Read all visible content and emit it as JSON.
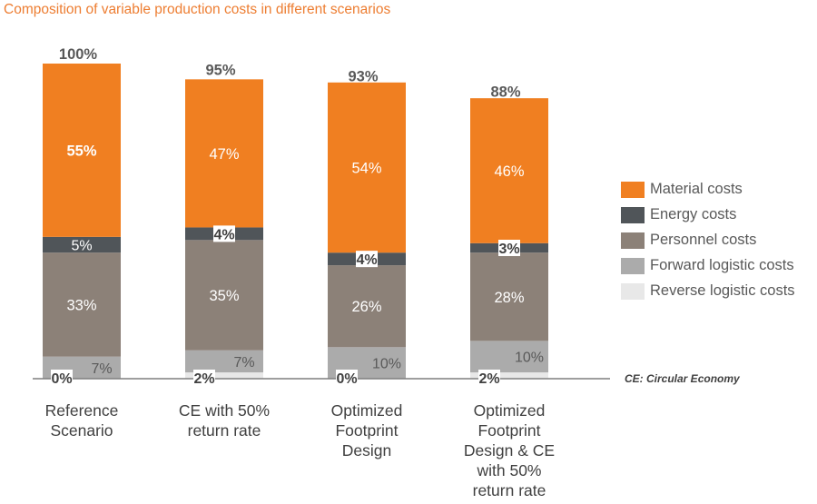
{
  "colors": {
    "title": "#ED7D31",
    "material": "#F07F21",
    "energy": "#505559",
    "personnel": "#8C8178",
    "forward": "#ABABAB",
    "reverse": "#E8E8E8",
    "axis": "#7F7F7F",
    "total_label": "#595959",
    "category_label": "#404040"
  },
  "chart_data": {
    "type": "bar",
    "stacked": true,
    "title": "Composition of variable production costs in different scenarios",
    "categories": [
      "Reference Scenario",
      "CE with 50% return rate",
      "Optimized Footprint Design",
      "Optimized Footprint Design & CE with 50% return rate"
    ],
    "category_lines": [
      [
        "Reference",
        "Scenario"
      ],
      [
        "CE with 50%",
        "return rate"
      ],
      [
        "Optimized",
        "Footprint",
        "Design"
      ],
      [
        "Optimized",
        "Footprint",
        "Design & CE",
        "with 50%",
        "return rate"
      ]
    ],
    "totals": [
      100,
      95,
      93,
      88
    ],
    "total_labels": [
      "100%",
      "95%",
      "93%",
      "88%"
    ],
    "series": [
      {
        "name": "Reverse logistic costs",
        "key": "reverse",
        "values": [
          0,
          2,
          0,
          2
        ],
        "labels": [
          "0%",
          "2%",
          "0%",
          "2%"
        ]
      },
      {
        "name": "Forward logistic costs",
        "key": "forward",
        "values": [
          7,
          7,
          10,
          10
        ],
        "labels": [
          "7%",
          "7%",
          "10%",
          "10%"
        ]
      },
      {
        "name": "Personnel costs",
        "key": "personnel",
        "values": [
          33,
          35,
          26,
          28
        ],
        "labels": [
          "33%",
          "35%",
          "26%",
          "28%"
        ]
      },
      {
        "name": "Energy costs",
        "key": "energy",
        "values": [
          5,
          4,
          4,
          3
        ],
        "labels": [
          "5%",
          "4%",
          "4%",
          "3%"
        ]
      },
      {
        "name": "Material costs",
        "key": "material",
        "values": [
          55,
          47,
          54,
          46
        ],
        "labels": [
          "55%",
          "47%",
          "54%",
          "46%"
        ]
      }
    ],
    "legend_order": [
      "material",
      "energy",
      "personnel",
      "forward",
      "reverse"
    ],
    "ylim": [
      0,
      100
    ],
    "grid": false,
    "legend_position": "right"
  },
  "legend": {
    "items": [
      {
        "key": "material",
        "label": "Material costs"
      },
      {
        "key": "energy",
        "label": "Energy costs"
      },
      {
        "key": "personnel",
        "label": "Personnel costs"
      },
      {
        "key": "forward",
        "label": "Forward logistic costs"
      },
      {
        "key": "reverse",
        "label": "Reverse logistic costs"
      }
    ]
  },
  "footnote": "CE: Circular Economy"
}
